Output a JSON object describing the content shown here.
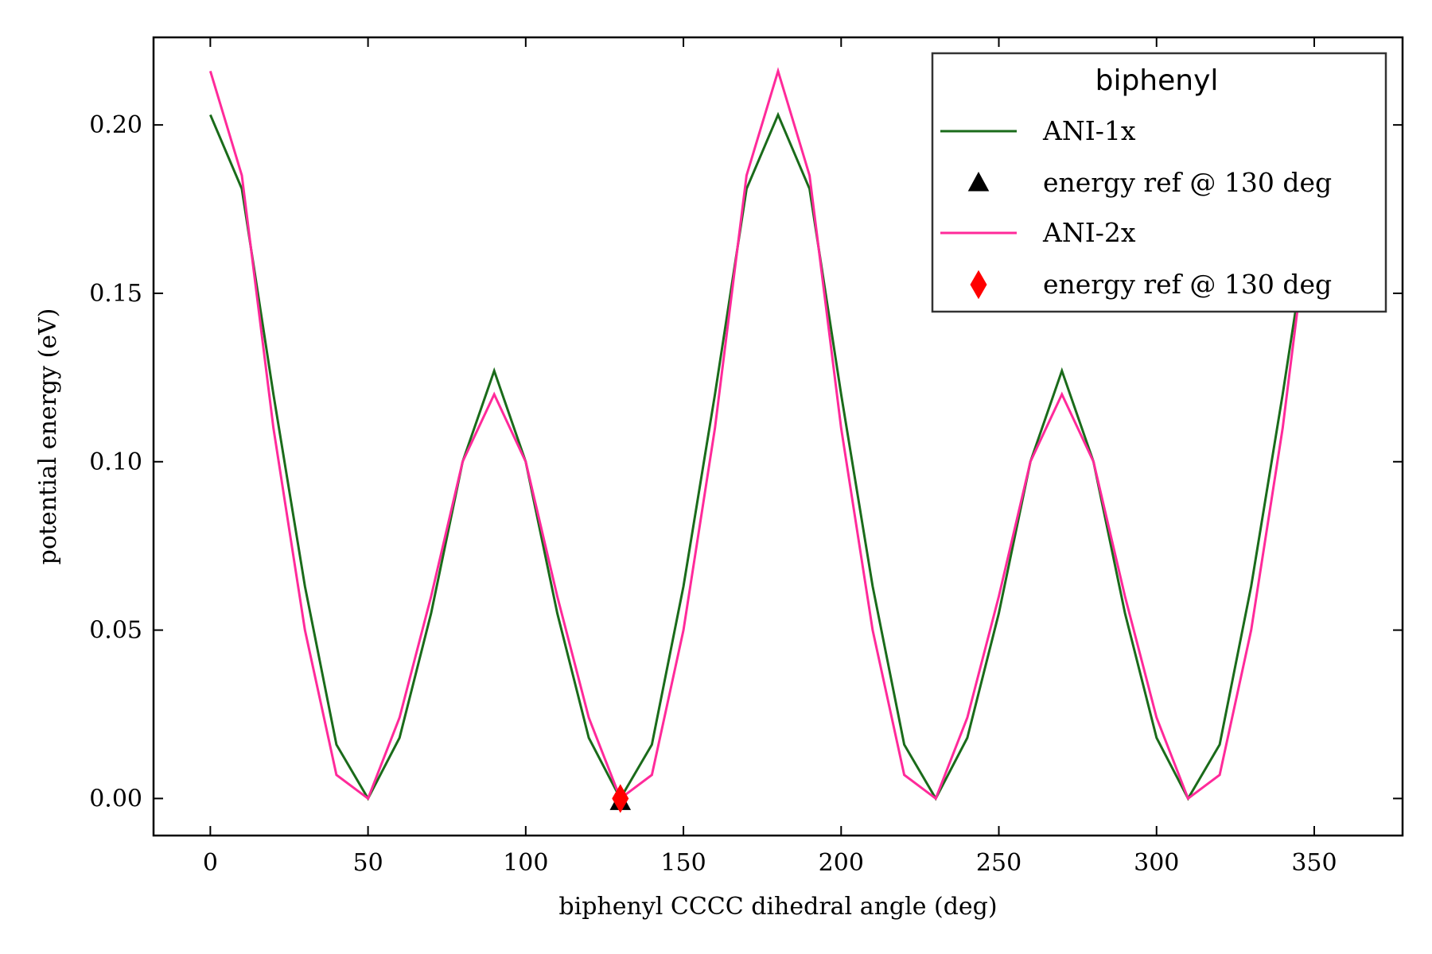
{
  "chart_data": {
    "type": "line",
    "title": "",
    "xlabel": "biphenyl CCCC dihedral angle (deg)",
    "ylabel": "potential energy (eV)",
    "xlim": [
      -18,
      378
    ],
    "ylim": [
      -0.011,
      0.226
    ],
    "xticks": [
      0,
      50,
      100,
      150,
      200,
      250,
      300,
      350
    ],
    "yticks": [
      0.0,
      0.05,
      0.1,
      0.15,
      0.2
    ],
    "xtick_labels": [
      "0",
      "50",
      "100",
      "150",
      "200",
      "250",
      "300",
      "350"
    ],
    "ytick_labels": [
      "0.00",
      "0.05",
      "0.10",
      "0.15",
      "0.20"
    ],
    "grid": false,
    "legend": {
      "title": "biphenyl",
      "placement": "top-right",
      "entries": [
        "ANI-1x",
        "energy ref @ 130 deg",
        "ANI-2x",
        "energy ref @ 130 deg"
      ]
    },
    "x": [
      0,
      10,
      20,
      30,
      40,
      50,
      60,
      70,
      80,
      90,
      100,
      110,
      120,
      130,
      140,
      150,
      160,
      170,
      180,
      190,
      200,
      210,
      220,
      230,
      240,
      250,
      260,
      270,
      280,
      290,
      300,
      310,
      320,
      330,
      340,
      350,
      360
    ],
    "series": [
      {
        "name": "ANI-1x",
        "color": "#1a6b1a",
        "values": [
          0.203,
          0.181,
          0.12,
          0.063,
          0.016,
          0.0,
          0.018,
          0.055,
          0.1,
          0.127,
          0.1,
          0.055,
          0.018,
          0.0,
          0.016,
          0.063,
          0.12,
          0.181,
          0.203,
          0.181,
          0.12,
          0.063,
          0.016,
          0.0,
          0.018,
          0.055,
          0.1,
          0.127,
          0.1,
          0.055,
          0.018,
          0.0,
          0.016,
          0.063,
          0.12,
          0.181,
          0.203
        ]
      },
      {
        "name": "ANI-2x",
        "color": "#ff2a9a",
        "values": [
          0.216,
          0.185,
          0.11,
          0.05,
          0.007,
          0.0,
          0.024,
          0.06,
          0.1,
          0.12,
          0.1,
          0.06,
          0.024,
          0.0,
          0.007,
          0.05,
          0.11,
          0.185,
          0.216,
          0.185,
          0.11,
          0.05,
          0.007,
          0.0,
          0.024,
          0.06,
          0.1,
          0.12,
          0.1,
          0.06,
          0.024,
          0.0,
          0.007,
          0.05,
          0.11,
          0.185,
          0.216
        ]
      }
    ],
    "markers": [
      {
        "name": "energy ref @ 130 deg",
        "shape": "triangle",
        "color": "#000000",
        "x": 130,
        "y": 0.0
      },
      {
        "name": "energy ref @ 130 deg",
        "shape": "diamond",
        "color": "#ff0000",
        "x": 130,
        "y": 0.0
      }
    ]
  }
}
